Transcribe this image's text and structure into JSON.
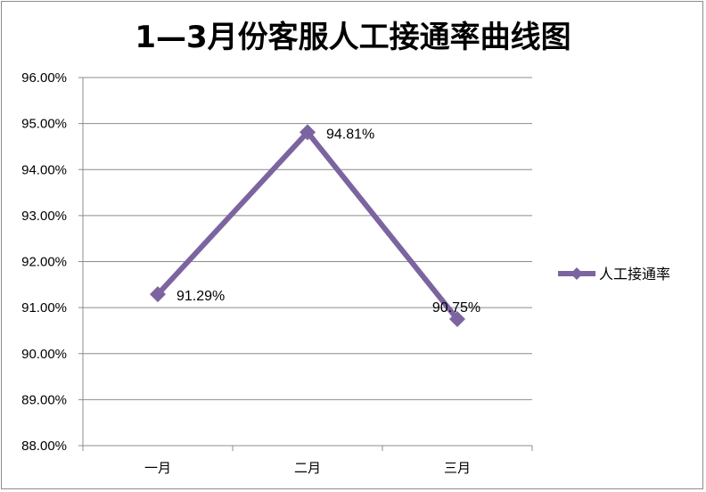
{
  "chart_data": {
    "type": "line",
    "title": "1—3月份客服人工接通率曲线图",
    "categories": [
      "一月",
      "二月",
      "三月"
    ],
    "series": [
      {
        "name": "人工接通率",
        "values": [
          91.29,
          94.81,
          90.75
        ],
        "labels": [
          "91.29%",
          "94.81%",
          "90.75%"
        ],
        "color": "#7b64a0"
      }
    ],
    "y_ticks": [
      "88.00%",
      "89.00%",
      "90.00%",
      "91.00%",
      "92.00%",
      "93.00%",
      "94.00%",
      "95.00%",
      "96.00%"
    ],
    "ylim": [
      88,
      96
    ],
    "grid": true,
    "legend": "right",
    "gridline_color": "#8c8c8c"
  }
}
